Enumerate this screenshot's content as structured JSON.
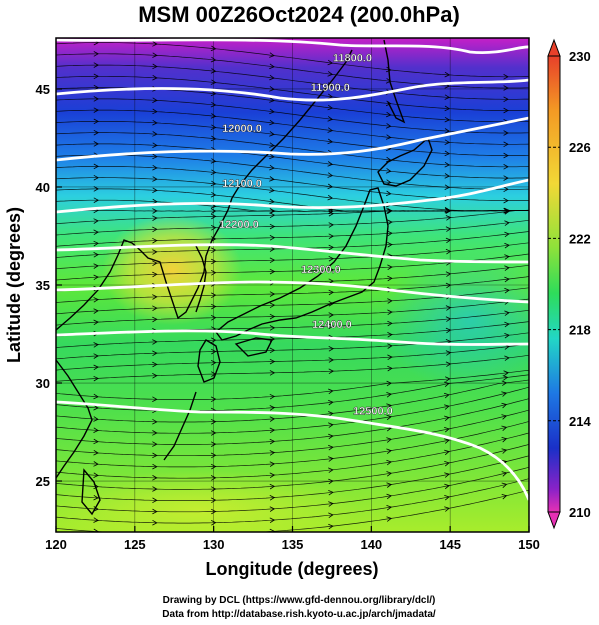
{
  "title": "MSM 00Z26Oct2024 (200.0hPa)",
  "xlabel": "Longitude (degrees)",
  "ylabel": "Latitude  (degrees)",
  "x_ticks": [
    "120",
    "125",
    "130",
    "135",
    "140",
    "145",
    "150"
  ],
  "y_ticks": [
    "25",
    "30",
    "35",
    "40",
    "45"
  ],
  "colorbar": {
    "labels": [
      "230",
      "226",
      "222",
      "218",
      "214",
      "210"
    ],
    "min": 210,
    "max": 230
  },
  "contour_labels": [
    {
      "text": "11800.0",
      "lon": 138.8,
      "lat": 46.4
    },
    {
      "text": "11900.0",
      "lon": 137.4,
      "lat": 44.9
    },
    {
      "text": "12000.0",
      "lon": 131.8,
      "lat": 42.8
    },
    {
      "text": "12100.0",
      "lon": 131.8,
      "lat": 40.0
    },
    {
      "text": "12200.0",
      "lon": 131.6,
      "lat": 37.9
    },
    {
      "text": "12300.0",
      "lon": 136.8,
      "lat": 35.6
    },
    {
      "text": "12400.0",
      "lon": 137.5,
      "lat": 32.8
    },
    {
      "text": "12500.0",
      "lon": 140.1,
      "lat": 28.4
    }
  ],
  "footer": {
    "line1": "Drawing by DCL (https://www.gfd-dennou.org/library/dcl/)",
    "line2": "Data from http://database.rish.kyoto-u.ac.jp/arch/jmadata/"
  },
  "chart_data": {
    "type": "heatmap",
    "title": "MSM 00Z26Oct2024 (200.0hPa)",
    "xlabel": "Longitude (degrees)",
    "ylabel": "Latitude  (degrees)",
    "xlim": [
      120,
      150
    ],
    "ylim": [
      22.4,
      47.6
    ],
    "colorbar_range": [
      210,
      230
    ],
    "contour_values": [
      11800,
      11900,
      12000,
      12100,
      12200,
      12300,
      12400,
      12500
    ],
    "grid": true
  }
}
